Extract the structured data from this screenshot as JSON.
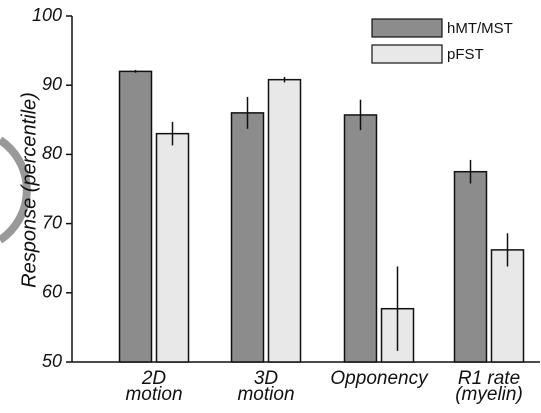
{
  "chart_data": {
    "type": "bar",
    "y_label": "Response (percentile)",
    "categories": [
      [
        "2D",
        "motion"
      ],
      [
        "3D",
        "motion"
      ],
      [
        "Opponency"
      ],
      [
        "R1 rate",
        "(myelin)"
      ]
    ],
    "series": [
      {
        "name": "hMT/MST",
        "color": "#8c8c8c",
        "values": [
          92,
          86,
          85.7,
          77.5
        ],
        "errors": [
          0.2,
          2.3,
          2.2,
          1.7
        ]
      },
      {
        "name": "pFST",
        "color": "#e8e8e8",
        "values": [
          83,
          90.8,
          57.7,
          66.2
        ],
        "errors": [
          1.7,
          0.4,
          6.1,
          2.4
        ]
      }
    ],
    "ylim": [
      50,
      100
    ],
    "yticks": [
      50,
      60,
      70,
      80,
      90,
      100
    ],
    "grid": false,
    "legend": "top-right"
  }
}
